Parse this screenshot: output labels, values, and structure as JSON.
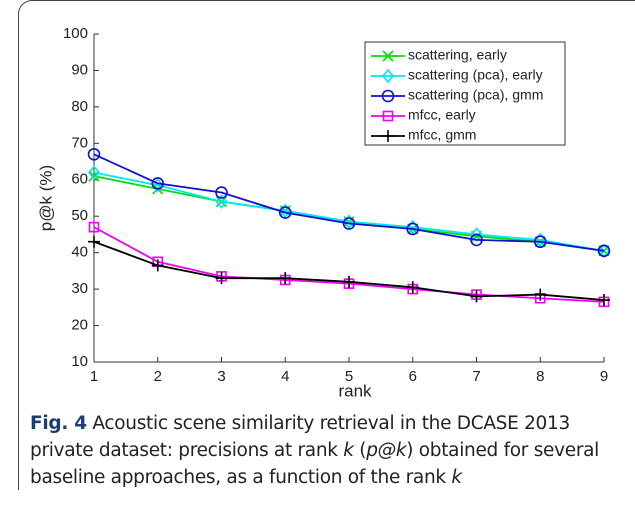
{
  "chart_data": {
    "type": "line",
    "xlabel": "rank",
    "ylabel": "p@k (%)",
    "x": [
      1,
      2,
      3,
      4,
      5,
      6,
      7,
      8,
      9
    ],
    "xlim": [
      1,
      9
    ],
    "xticks": [
      1,
      2,
      3,
      4,
      5,
      6,
      7,
      8,
      9
    ],
    "ylim": [
      10,
      100
    ],
    "yticks": [
      10,
      20,
      30,
      40,
      50,
      60,
      70,
      80,
      90,
      100
    ],
    "legend": "upper right",
    "series": [
      {
        "name": "scattering, early",
        "color": "#00e000",
        "marker": "x",
        "values": [
          61,
          57.5,
          54,
          51.5,
          48.5,
          46.5,
          44.5,
          43,
          40.5
        ]
      },
      {
        "name": "scattering (pca), early",
        "color": "#00e8f0",
        "marker": "diamond",
        "values": [
          62,
          58.5,
          54,
          51.5,
          48.5,
          47,
          45,
          43.5,
          40.5
        ]
      },
      {
        "name": "scattering (pca), gmm",
        "color": "#1010d0",
        "marker": "circle",
        "values": [
          67,
          59,
          56.5,
          51,
          48,
          46.5,
          43.5,
          43,
          40.5
        ]
      },
      {
        "name": "mfcc, early",
        "color": "#f000f0",
        "marker": "square",
        "values": [
          47,
          37.5,
          33.5,
          32.5,
          31.5,
          30,
          28.5,
          27.5,
          26.5
        ]
      },
      {
        "name": "mfcc, gmm",
        "color": "#000000",
        "marker": "plus",
        "values": [
          43,
          36.5,
          33,
          33,
          32,
          30.5,
          28,
          28.5,
          27
        ]
      }
    ]
  },
  "caption": {
    "label": "Fig. 4",
    "parts": [
      " Acoustic scene similarity retrieval in the DCASE 2013 private dataset: precisions at rank ",
      "k",
      " (",
      "p@k",
      ") obtained for several baseline approaches, as a function of the rank ",
      "k"
    ]
  }
}
